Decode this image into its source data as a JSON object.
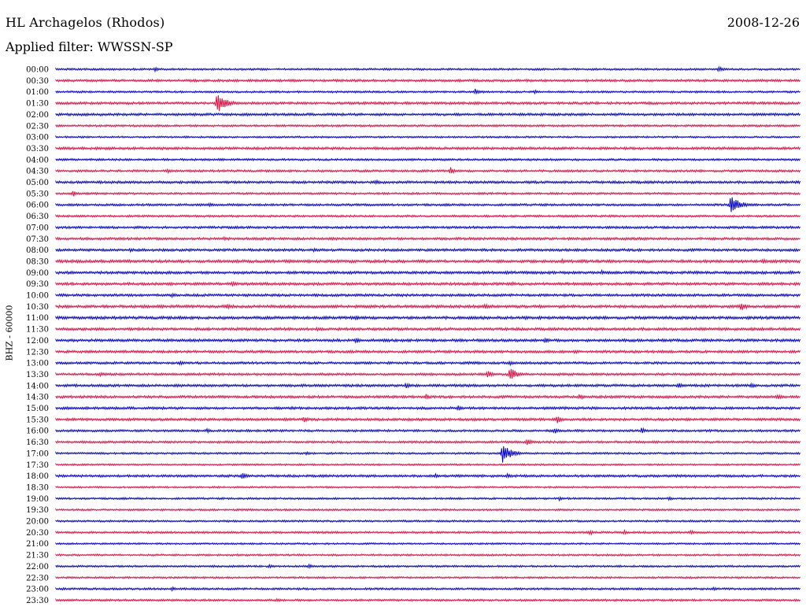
{
  "header": {
    "station": "HL Archagelos (Rhodos)",
    "date": "2008-12-26",
    "filter": "Applied filter: WWSSN-SP",
    "channel_label": "BHZ - 60000"
  },
  "colors": {
    "even_trace": "#0000cc",
    "odd_trace": "#dd1144"
  },
  "chart_data": {
    "type": "line",
    "title": "HL Archagelos (Rhodos)",
    "subtitle": "Applied filter: WWSSN-SP",
    "ylabel": "BHZ - 60000",
    "xlabel": "",
    "grid": false,
    "legend": "none",
    "trace_minutes": 30,
    "tick_labels": [
      "00:00",
      "00:30",
      "01:00",
      "01:30",
      "02:00",
      "02:30",
      "03:00",
      "03:30",
      "04:00",
      "04:30",
      "05:00",
      "05:30",
      "06:00",
      "06:30",
      "07:00",
      "07:30",
      "08:00",
      "08:30",
      "09:00",
      "09:30",
      "10:00",
      "10:30",
      "11:00",
      "11:30",
      "12:00",
      "12:30",
      "13:00",
      "13:30",
      "14:00",
      "14:30",
      "15:00",
      "15:30",
      "16:00",
      "16:30",
      "17:00",
      "17:30",
      "18:00",
      "18:30",
      "19:00",
      "19:30",
      "20:00",
      "20:30",
      "21:00",
      "21:30",
      "22:00",
      "22:30",
      "23:00",
      "23:30"
    ],
    "noise_level": [
      1.2,
      1.5,
      1.2,
      1.6,
      1.6,
      1.3,
      1.1,
      1.6,
      1.3,
      1.4,
      1.6,
      1.3,
      1.4,
      1.3,
      1.5,
      1.6,
      1.6,
      1.8,
      1.7,
      1.7,
      1.6,
      1.8,
      1.8,
      1.7,
      1.7,
      1.6,
      1.5,
      1.5,
      1.6,
      1.6,
      1.6,
      1.6,
      1.4,
      1.4,
      1.2,
      1.1,
      1.5,
      1.1,
      1.2,
      1.2,
      1.2,
      1.3,
      1.1,
      1.2,
      1.2,
      1.2,
      1.3,
      1.3
    ],
    "events": [
      {
        "trace": 0,
        "minute": 4.0,
        "amplitude": 3
      },
      {
        "trace": 0,
        "minute": 26.7,
        "amplitude": 4
      },
      {
        "trace": 2,
        "minute": 16.9,
        "amplitude": 4
      },
      {
        "trace": 2,
        "minute": 19.3,
        "amplitude": 3
      },
      {
        "trace": 3,
        "minute": 6.5,
        "amplitude": 13
      },
      {
        "trace": 9,
        "minute": 4.5,
        "amplitude": 3
      },
      {
        "trace": 9,
        "minute": 15.9,
        "amplitude": 5
      },
      {
        "trace": 10,
        "minute": 12.9,
        "amplitude": 3
      },
      {
        "trace": 11,
        "minute": 0.7,
        "amplitude": 4
      },
      {
        "trace": 12,
        "minute": 6.2,
        "amplitude": 3
      },
      {
        "trace": 12,
        "minute": 27.2,
        "amplitude": 12
      },
      {
        "trace": 15,
        "minute": 6.8,
        "amplitude": 3
      },
      {
        "trace": 16,
        "minute": 3.0,
        "amplitude": 3
      },
      {
        "trace": 16,
        "minute": 10.4,
        "amplitude": 3
      },
      {
        "trace": 17,
        "minute": 20.4,
        "amplitude": 3
      },
      {
        "trace": 17,
        "minute": 28.5,
        "amplitude": 4
      },
      {
        "trace": 18,
        "minute": 22.0,
        "amplitude": 3
      },
      {
        "trace": 18,
        "minute": 29.6,
        "amplitude": 3
      },
      {
        "trace": 19,
        "minute": 7.1,
        "amplitude": 4
      },
      {
        "trace": 19,
        "minute": 18.4,
        "amplitude": 3
      },
      {
        "trace": 20,
        "minute": 4.7,
        "amplitude": 3
      },
      {
        "trace": 21,
        "minute": 6.9,
        "amplitude": 4
      },
      {
        "trace": 21,
        "minute": 17.3,
        "amplitude": 4
      },
      {
        "trace": 21,
        "minute": 27.6,
        "amplitude": 6
      },
      {
        "trace": 22,
        "minute": 12.1,
        "amplitude": 4
      },
      {
        "trace": 23,
        "minute": 10.5,
        "amplitude": 3
      },
      {
        "trace": 24,
        "minute": 12.1,
        "amplitude": 4
      },
      {
        "trace": 24,
        "minute": 19.7,
        "amplitude": 4
      },
      {
        "trace": 25,
        "minute": 20.9,
        "amplitude": 3
      },
      {
        "trace": 26,
        "minute": 5.0,
        "amplitude": 3
      },
      {
        "trace": 26,
        "minute": 18.3,
        "amplitude": 3
      },
      {
        "trace": 27,
        "minute": 1.8,
        "amplitude": 3
      },
      {
        "trace": 27,
        "minute": 17.4,
        "amplitude": 5
      },
      {
        "trace": 27,
        "minute": 18.3,
        "amplitude": 9
      },
      {
        "trace": 28,
        "minute": 14.1,
        "amplitude": 4
      },
      {
        "trace": 28,
        "minute": 25.1,
        "amplitude": 4
      },
      {
        "trace": 28,
        "minute": 28.0,
        "amplitude": 4
      },
      {
        "trace": 29,
        "minute": 14.9,
        "amplitude": 4
      },
      {
        "trace": 29,
        "minute": 21.1,
        "amplitude": 4
      },
      {
        "trace": 29,
        "minute": 29.1,
        "amplitude": 4
      },
      {
        "trace": 30,
        "minute": 9.5,
        "amplitude": 3
      },
      {
        "trace": 30,
        "minute": 16.2,
        "amplitude": 4
      },
      {
        "trace": 31,
        "minute": 10.0,
        "amplitude": 4
      },
      {
        "trace": 31,
        "minute": 20.2,
        "amplitude": 5
      },
      {
        "trace": 32,
        "minute": 6.1,
        "amplitude": 3
      },
      {
        "trace": 32,
        "minute": 20.1,
        "amplitude": 4
      },
      {
        "trace": 32,
        "minute": 23.6,
        "amplitude": 4
      },
      {
        "trace": 33,
        "minute": 19.0,
        "amplitude": 5
      },
      {
        "trace": 34,
        "minute": 10.1,
        "amplitude": 3
      },
      {
        "trace": 34,
        "minute": 18.0,
        "amplitude": 12
      },
      {
        "trace": 36,
        "minute": 7.5,
        "amplitude": 5
      },
      {
        "trace": 36,
        "minute": 15.3,
        "amplitude": 3
      },
      {
        "trace": 36,
        "minute": 18.2,
        "amplitude": 3
      },
      {
        "trace": 38,
        "minute": 20.3,
        "amplitude": 3
      },
      {
        "trace": 38,
        "minute": 24.7,
        "amplitude": 3
      },
      {
        "trace": 41,
        "minute": 21.5,
        "amplitude": 4
      },
      {
        "trace": 41,
        "minute": 22.9,
        "amplitude": 3
      },
      {
        "trace": 41,
        "minute": 25.6,
        "amplitude": 3
      },
      {
        "trace": 44,
        "minute": 8.6,
        "amplitude": 3
      },
      {
        "trace": 44,
        "minute": 10.2,
        "amplitude": 3
      },
      {
        "trace": 46,
        "minute": 4.7,
        "amplitude": 3
      },
      {
        "trace": 46,
        "minute": 26.5,
        "amplitude": 3
      },
      {
        "trace": 47,
        "minute": 8.9,
        "amplitude": 3
      }
    ]
  }
}
